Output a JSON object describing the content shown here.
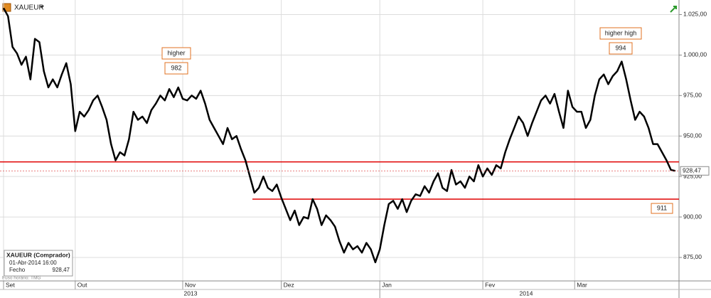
{
  "chart_data": {
    "type": "line",
    "symbol": "XAUEUR",
    "timezone_note": "Fuso horário: TMG",
    "info": {
      "title": "XAUEUR (Comprador)",
      "datetime": "01-Abr-2014 16:00",
      "close_label": "Fecho",
      "close": "928,47"
    },
    "series": [
      {
        "name": "XAUEUR",
        "color": "#000000",
        "values": [
          1029,
          1024,
          1005,
          1001,
          994,
          999,
          985,
          1010,
          1008,
          990,
          980,
          985,
          980,
          988,
          995,
          982,
          953,
          965,
          962,
          966,
          972,
          975,
          968,
          960,
          945,
          935,
          940,
          938,
          948,
          965,
          960,
          962,
          958,
          966,
          970,
          975,
          972,
          979,
          974,
          980,
          973,
          972,
          975,
          973,
          978,
          970,
          960,
          955,
          950,
          945,
          955,
          948,
          950,
          942,
          935,
          925,
          915,
          918,
          925,
          918,
          916,
          920,
          912,
          905,
          898,
          904,
          895,
          900,
          899,
          911,
          905,
          895,
          901,
          898,
          894,
          885,
          878,
          884,
          880,
          882,
          878,
          884,
          880,
          872,
          880,
          895,
          908,
          910,
          905,
          911,
          903,
          910,
          914,
          913,
          919,
          915,
          922,
          927,
          918,
          916,
          929,
          920,
          922,
          918,
          925,
          922,
          932,
          925,
          930,
          926,
          932,
          930,
          940,
          948,
          955,
          962,
          958,
          950,
          958,
          965,
          972,
          975,
          970,
          976,
          965,
          955,
          978,
          968,
          965,
          965,
          955,
          960,
          975,
          985,
          988,
          982,
          987,
          990,
          996,
          985,
          972,
          960,
          965,
          962,
          955,
          945,
          945,
          940,
          935,
          929,
          928.47
        ]
      }
    ],
    "last_label": "928,47",
    "xlim": [
      0,
      150
    ],
    "xticks": [
      {
        "value": 0,
        "label": "Set"
      },
      {
        "value": 16,
        "label": "Out"
      },
      {
        "value": 40,
        "label": "Nov"
      },
      {
        "value": 62,
        "label": "Dez"
      },
      {
        "value": 84,
        "label": "Jan"
      },
      {
        "value": 107,
        "label": "Fev"
      },
      {
        "value": 127.5,
        "label": "Mar"
      }
    ],
    "years": [
      "2013",
      "2014"
    ],
    "ylim": [
      860.5,
      1034
    ],
    "yticks": [
      {
        "value": 875,
        "label": "875,00"
      },
      {
        "value": 900,
        "label": "900,00"
      },
      {
        "value": 925,
        "label": "925,00"
      },
      {
        "value": 950,
        "label": "950,00"
      },
      {
        "value": 975,
        "label": "975,00"
      },
      {
        "value": 1000,
        "label": "1.000,00"
      },
      {
        "value": 1025,
        "label": "1.025,00"
      }
    ],
    "grid": true,
    "levels": [
      {
        "value": 934,
        "color": "#e00000"
      },
      {
        "value": 911,
        "color": "#e00000"
      }
    ],
    "annotations": [
      {
        "text": "higher",
        "value": 982
      },
      {
        "text": "higher high",
        "value": 994
      }
    ]
  }
}
